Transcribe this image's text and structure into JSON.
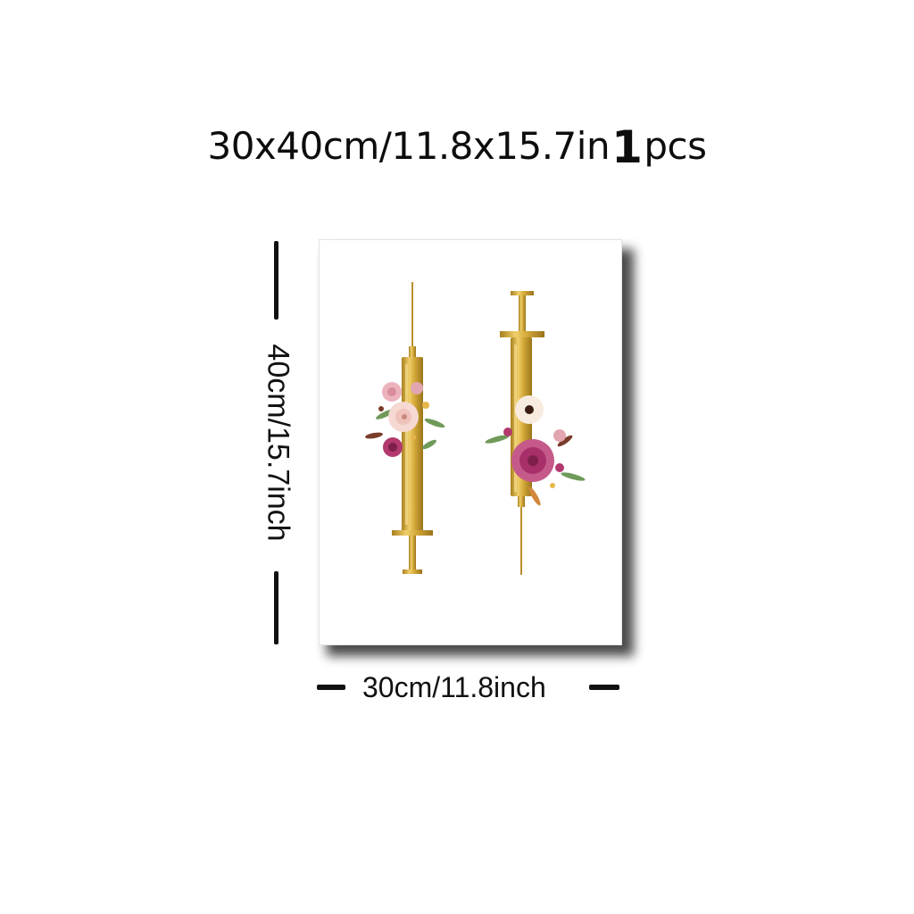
{
  "header": {
    "size_text": "30x40cm/11.8x15.7in",
    "quantity": "1",
    "unit": "pcs"
  },
  "dimensions": {
    "height_label": "40cm/15.7inch",
    "width_label": "30cm/11.8inch"
  },
  "artwork": {
    "subject": "two gold syringes with pink and cream watercolor flowers",
    "colors": {
      "gold": "#d4a93a",
      "gold_dark": "#a8801f",
      "pink": "#e8a6b4",
      "magenta": "#b2396d",
      "cream": "#f7ecdf",
      "leaf": "#6f9a5a"
    }
  }
}
